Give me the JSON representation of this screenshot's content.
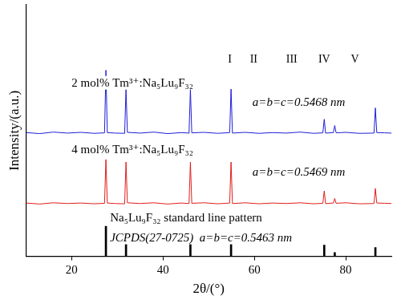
{
  "chart_data": {
    "type": "line",
    "x_label": "2θ/(°)",
    "y_label": "Intensity/(a.u.)",
    "xlim": [
      10,
      90
    ],
    "xticks": [
      20,
      40,
      60,
      80
    ],
    "ylim": [
      0,
      100
    ],
    "grid": false,
    "tick_labels": "x",
    "series": [
      {
        "name": "2 mol% Tm³⁺:Na₅Lu₉F₃₂",
        "type": "line",
        "color": "#1f1fd6",
        "x": [
          10,
          13,
          16,
          19,
          22,
          25,
          27.2,
          27.5,
          27.8,
          29.5,
          31.6,
          31.9,
          32.2,
          35,
          38,
          41,
          44,
          45.7,
          46,
          46.3,
          49,
          52,
          54.6,
          54.9,
          55.2,
          58,
          61,
          64,
          67,
          70,
          73,
          75,
          75.3,
          75.6,
          77.3,
          77.6,
          77.9,
          80,
          83,
          86.2,
          86.5,
          86.8,
          88.5,
          90
        ],
        "values": [
          49.2,
          48.8,
          49.4,
          49.0,
          49.3,
          48.9,
          49.1,
          74,
          49.2,
          49.0,
          48.9,
          66.5,
          49.3,
          49.0,
          49.4,
          48.8,
          49.2,
          49.0,
          66.5,
          49.1,
          49.3,
          48.9,
          49.2,
          66.5,
          49.0,
          49.3,
          48.9,
          49.2,
          49.0,
          49.4,
          48.9,
          49.1,
          54.5,
          49.0,
          49.2,
          52,
          49.1,
          49.3,
          48.9,
          49.0,
          59,
          49.2,
          49.1,
          49.0
        ]
      },
      {
        "name": "4 mol% Tm³⁺:Na₅Lu₉F₃₂",
        "type": "line",
        "color": "#e01e1e",
        "x": [
          10,
          13,
          16,
          19,
          22,
          25,
          27.2,
          27.5,
          27.8,
          29.5,
          31.6,
          31.9,
          32.2,
          35,
          38,
          41,
          44,
          45.7,
          46,
          46.3,
          49,
          52,
          54.6,
          54.9,
          55.2,
          58,
          61,
          64,
          67,
          70,
          73,
          75,
          75.3,
          75.6,
          77.3,
          77.6,
          77.9,
          80,
          83,
          86.2,
          86.5,
          86.8,
          88.5,
          90
        ],
        "values": [
          21.2,
          20.8,
          21.3,
          21.0,
          21.2,
          20.9,
          21.1,
          38.5,
          21.2,
          21.0,
          20.9,
          37.5,
          21.3,
          21.0,
          21.3,
          20.8,
          21.2,
          21.0,
          37.5,
          21.1,
          21.3,
          20.9,
          21.2,
          37.5,
          21.0,
          21.3,
          20.9,
          21.2,
          21.0,
          21.3,
          20.9,
          21.1,
          26,
          21.0,
          21.2,
          23,
          21.1,
          21.3,
          20.9,
          21.0,
          27,
          21.2,
          21.1,
          21.0
        ]
      },
      {
        "name": "Na₅Lu₉F₃₂ standard line pattern",
        "type": "bar",
        "color": "#000000",
        "x": [
          27.5,
          31.9,
          46,
          54.9,
          75.3,
          77.6,
          86.5
        ],
        "values": [
          12,
          7,
          7,
          7.5,
          4.5,
          1.5,
          3.5
        ]
      }
    ],
    "annotations": [
      "a=b=c=0.5468 nm",
      "a=b=c=0.5469 nm",
      "JCPDS(27-0725)  a=b=c=0.5463 nm",
      "I",
      "II",
      "III",
      "IV",
      "V"
    ]
  }
}
